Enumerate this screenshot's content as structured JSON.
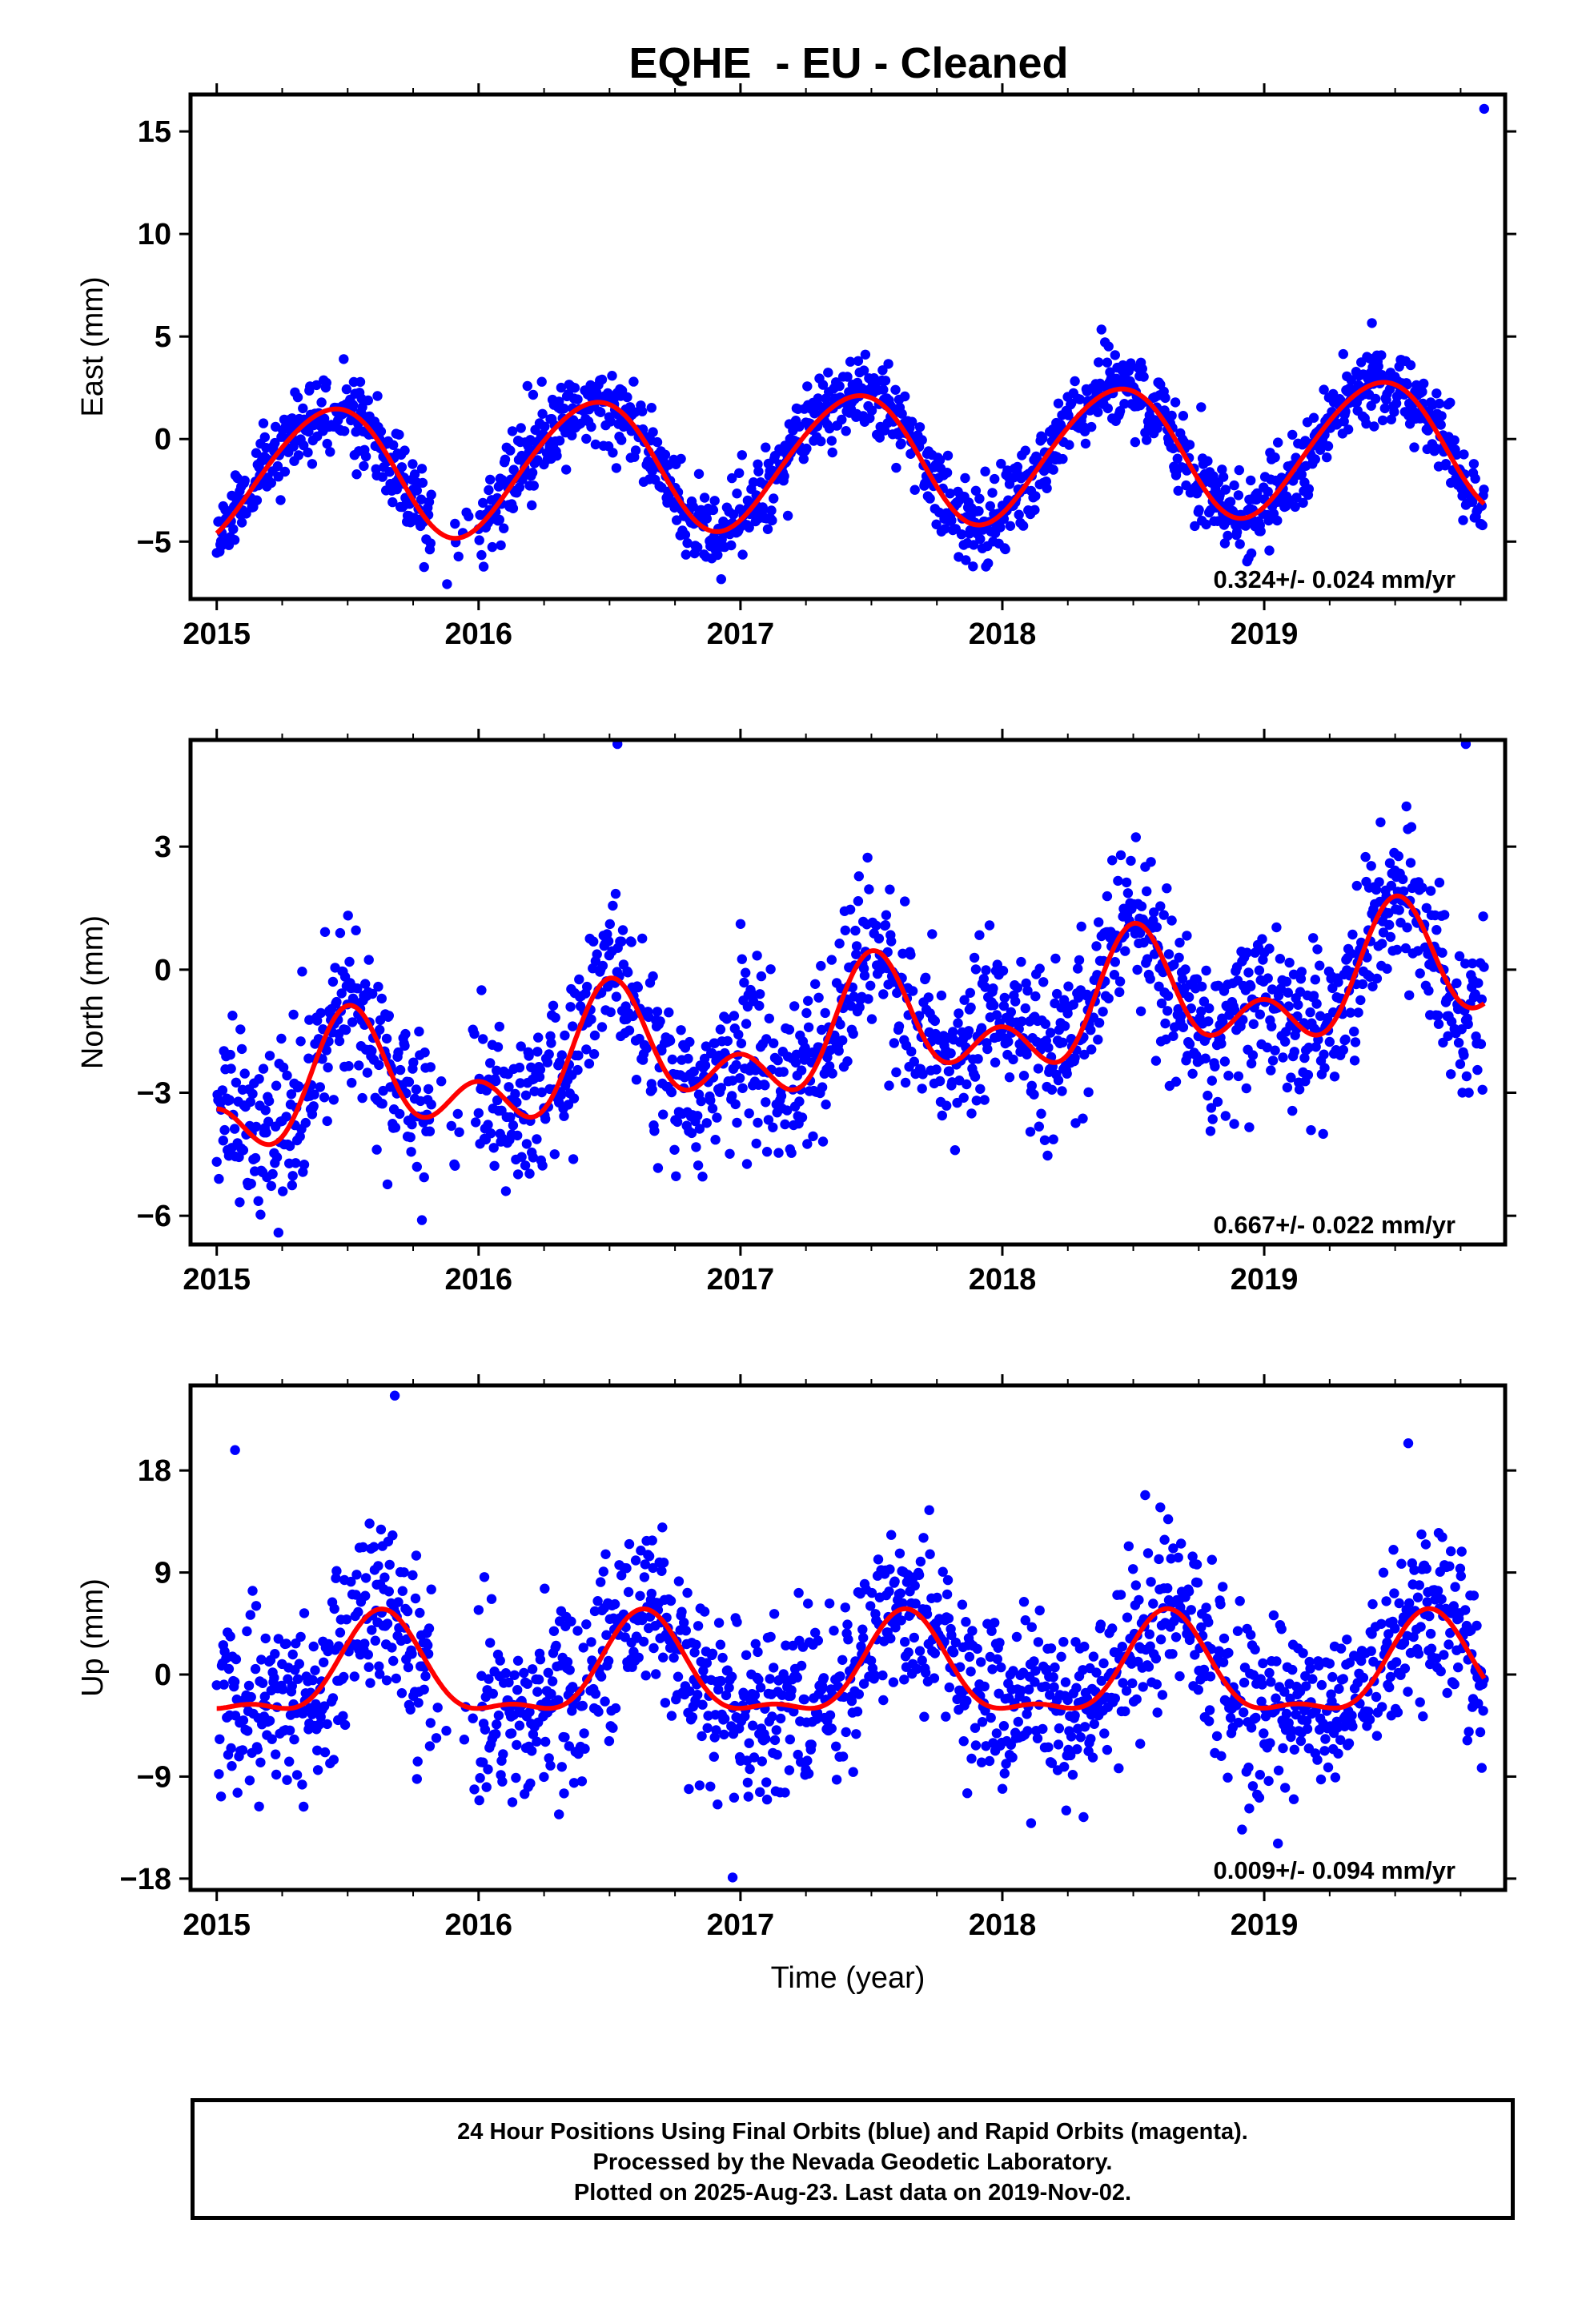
{
  "title": "EQHE  - EU - Cleaned",
  "colors": {
    "points": "#0000ff",
    "fit": "#ff0000",
    "axes": "#000000"
  },
  "chart_data": [
    {
      "type": "scatter",
      "ylabel": "East (mm)",
      "xlabel": "",
      "xlim": [
        2014.9,
        2019.92
      ],
      "ylim": [
        -7.8,
        16.8
      ],
      "xticks": [
        2015,
        2016,
        2017,
        2018,
        2019
      ],
      "yticks": [
        -5,
        0,
        5,
        10,
        15
      ],
      "rate_label": "0.324+/- 0.024 mm/yr",
      "series": [
        {
          "kind": "points",
          "x_range": [
            2015.0,
            2019.84
          ],
          "seed": 11
        },
        {
          "kind": "fit",
          "offset": -1.0,
          "rate": 0.324,
          "annual_amp": 3.2,
          "annual_phase_peak": 0.43,
          "semi_amp": 0.25,
          "semi_phase_peak": 0.1,
          "scatter": 1.0
        }
      ],
      "outliers": [
        {
          "x": 2019.84,
          "y": 16.1
        }
      ]
    },
    {
      "type": "scatter",
      "ylabel": "North (mm)",
      "xlabel": "",
      "xlim": [
        2014.9,
        2019.92
      ],
      "ylim": [
        -6.7,
        5.6
      ],
      "xticks": [
        2015,
        2016,
        2017,
        2018,
        2019
      ],
      "yticks": [
        -6,
        -3,
        0,
        3
      ],
      "rate_label": "0.667+/- 0.022 mm/yr",
      "series": [
        {
          "kind": "points",
          "x_range": [
            2015.0,
            2019.84
          ],
          "seed": 23
        },
        {
          "kind": "fit",
          "offset": -1.6,
          "rate": 0.667,
          "annual_amp": 1.1,
          "annual_phase_peak": 0.52,
          "semi_amp": 0.9,
          "semi_phase_peak": 0.5,
          "scatter": 1.0
        }
      ],
      "outliers": [
        {
          "x": 2016.53,
          "y": 5.5
        },
        {
          "x": 2019.77,
          "y": 5.5
        }
      ]
    },
    {
      "type": "scatter",
      "ylabel": "Up (mm)",
      "xlabel": "Time (year)",
      "xlim": [
        2014.9,
        2019.92
      ],
      "ylim": [
        -19.0,
        25.5
      ],
      "xticks": [
        2015,
        2016,
        2017,
        2018,
        2019
      ],
      "yticks": [
        -18,
        -9,
        0,
        9,
        18
      ],
      "rate_label": "0.009+/- 0.094 mm/yr",
      "series": [
        {
          "kind": "points",
          "x_range": [
            2015.0,
            2019.84
          ],
          "seed": 37
        },
        {
          "kind": "fit",
          "offset": 0.0,
          "rate": 0.009,
          "annual_amp": 4.2,
          "annual_phase_peak": 0.63,
          "semi_amp": 1.6,
          "semi_phase_peak": 0.63,
          "scatter": 3.8
        }
      ],
      "outliers": [
        {
          "x": 2015.68,
          "y": 24.6
        },
        {
          "x": 2015.07,
          "y": 19.8
        },
        {
          "x": 2019.55,
          "y": 20.4
        },
        {
          "x": 2016.97,
          "y": -17.9
        }
      ]
    }
  ],
  "footer": {
    "line1": "24 Hour Positions Using Final Orbits (blue) and Rapid Orbits (magenta).",
    "line2": "Processed by the Nevada Geodetic Laboratory.",
    "line3": "Plotted on 2025-Aug-23. Last data on 2019-Nov-02."
  }
}
